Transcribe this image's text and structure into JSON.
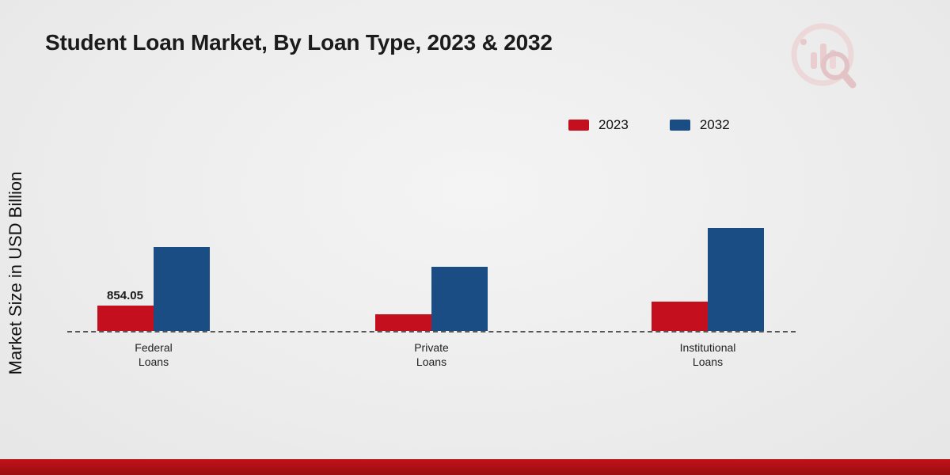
{
  "title": "Student Loan Market, By Loan Type, 2023 & 2032",
  "y_axis_label": "Market Size in USD Billion",
  "footer": {
    "color": "#b01116"
  },
  "chart_data": {
    "type": "bar",
    "title": "Student Loan Market, By Loan Type, 2023 & 2032",
    "ylabel": "Market Size in USD Billion",
    "units": "USD Billion",
    "categories": [
      "Federal Loans",
      "Private Loans",
      "Institutional Loans"
    ],
    "series": [
      {
        "name": "2023",
        "color": "#c40f1e",
        "values": [
          854.05,
          560,
          985
        ]
      },
      {
        "name": "2032",
        "color": "#1b4d85",
        "values": [
          2830,
          2160,
          3470
        ]
      }
    ],
    "data_label": {
      "text": "854.05",
      "category": "Federal Loans",
      "series": "2023"
    },
    "axis": {
      "baseline_style": "dashed",
      "y_ticks_visible": false,
      "grid": false
    },
    "legend_position": "top-right"
  }
}
